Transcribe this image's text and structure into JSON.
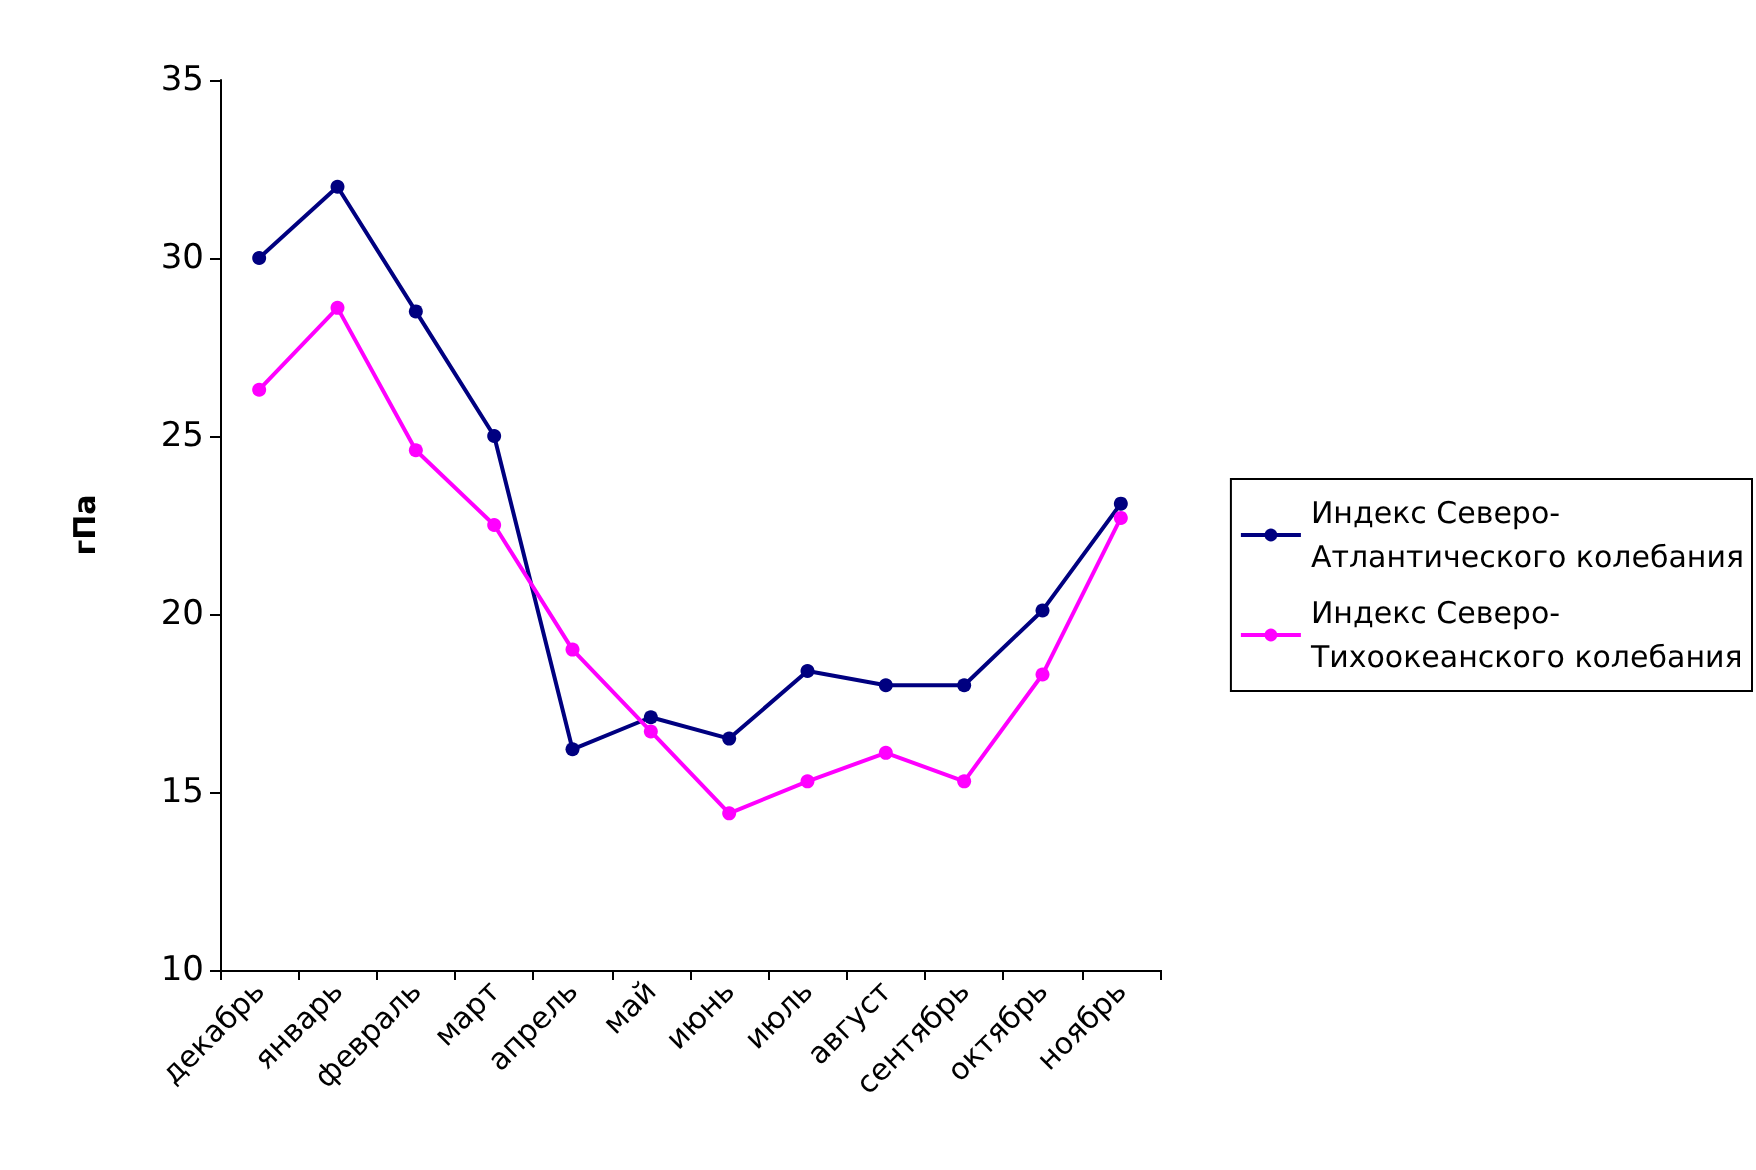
{
  "chart_data": {
    "type": "line",
    "ylabel": "гПа",
    "categories": [
      "декабрь",
      "январь",
      "февраль",
      "март",
      "апрель",
      "май",
      "июнь",
      "июль",
      "август",
      "сентябрь",
      "октябрь",
      "ноябрь"
    ],
    "series": [
      {
        "name": "Индекс Северо-Атлантического колебания",
        "color": "#000080",
        "values": [
          30.0,
          32.0,
          28.5,
          25.0,
          16.2,
          17.1,
          16.5,
          18.4,
          18.0,
          18.0,
          20.1,
          23.1
        ]
      },
      {
        "name": "Индекс Северо-Тихоокеанского колебания",
        "color": "#ff00ff",
        "values": [
          26.3,
          28.6,
          24.6,
          22.5,
          19.0,
          16.7,
          14.4,
          15.3,
          16.1,
          15.3,
          18.3,
          22.7
        ]
      }
    ],
    "ylim": [
      10,
      35
    ],
    "yticks": [
      10,
      15,
      20,
      25,
      30,
      35
    ],
    "grid": false,
    "legend": "right",
    "marker": "circle",
    "line_style": "solid"
  }
}
